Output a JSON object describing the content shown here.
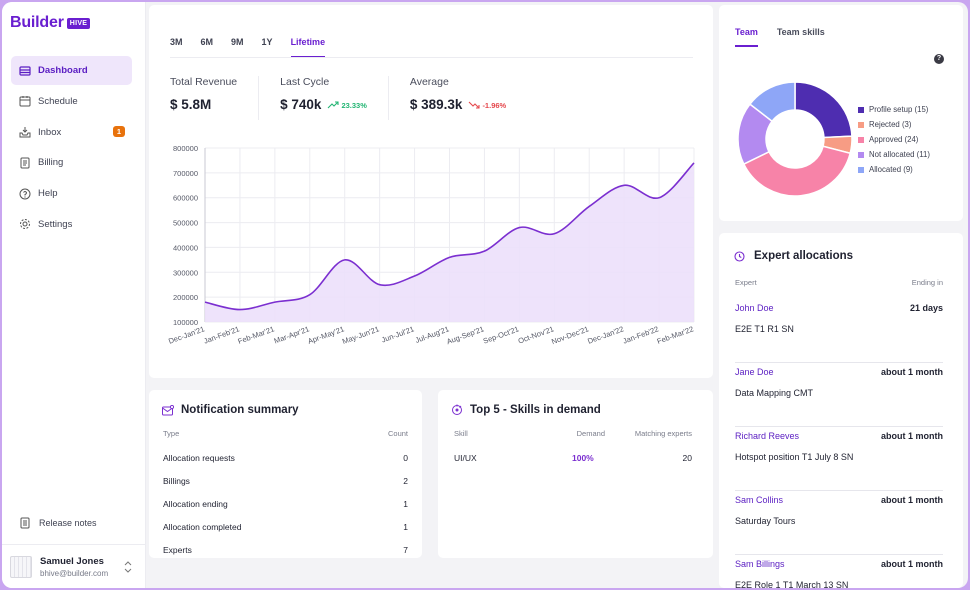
{
  "brand": {
    "word": "Builder",
    "badge": "HIVE"
  },
  "nav": [
    {
      "label": "Dashboard",
      "icon": "dashboard-icon",
      "active": true
    },
    {
      "label": "Schedule",
      "icon": "calendar-icon"
    },
    {
      "label": "Inbox",
      "icon": "inbox-icon",
      "badge": "1"
    },
    {
      "label": "Billing",
      "icon": "billing-icon"
    },
    {
      "label": "Help",
      "icon": "help-icon"
    },
    {
      "label": "Settings",
      "icon": "gear-icon"
    }
  ],
  "release_notes": "Release notes",
  "user": {
    "name": "Samuel Jones",
    "email": "bhive@builder.com"
  },
  "revenue": {
    "tabs": [
      "3M",
      "6M",
      "9M",
      "1Y",
      "Lifetime"
    ],
    "active_tab": "Lifetime",
    "stats": [
      {
        "label": "Total Revenue",
        "value": "$ 5.8M"
      },
      {
        "label": "Last Cycle",
        "value": "$ 740k",
        "trend": "23.33%",
        "direction": "up"
      },
      {
        "label": "Average",
        "value": "$ 389.3k",
        "trend": "-1.96%",
        "direction": "down"
      }
    ]
  },
  "chart_data": {
    "type": "area",
    "categories": [
      "Dec-Jan'21",
      "Jan-Feb'21",
      "Feb-Mar'21",
      "Mar-Apr'21",
      "Apr-May'21",
      "May-Jun'21",
      "Jun-Jul'21",
      "Jul-Aug'21",
      "Aug-Sep'21",
      "Sep-Oct'21",
      "Oct-Nov'21",
      "Nov-Dec'21",
      "Dec-Jan'22",
      "Jan-Feb'22",
      "Feb-Mar'22"
    ],
    "values": [
      180000,
      150000,
      180000,
      210000,
      350000,
      250000,
      285000,
      360000,
      385000,
      480000,
      455000,
      565000,
      650000,
      600000,
      740000
    ],
    "yticks": [
      100000,
      200000,
      300000,
      400000,
      500000,
      600000,
      700000,
      800000
    ],
    "ylim": [
      100000,
      800000
    ],
    "grid": true,
    "line_color": "#7b2fd0",
    "fill_color": "#ece0fb"
  },
  "notifications": {
    "title": "Notification summary",
    "columns": [
      "Type",
      "Count"
    ],
    "rows": [
      {
        "type": "Allocation requests",
        "count": "0"
      },
      {
        "type": "Billings",
        "count": "2"
      },
      {
        "type": "Allocation ending",
        "count": "1"
      },
      {
        "type": "Allocation completed",
        "count": "1"
      },
      {
        "type": "Experts",
        "count": "7"
      }
    ]
  },
  "skills": {
    "title": "Top 5 - Skills in demand",
    "columns": [
      "Skill",
      "Demand",
      "Matching experts"
    ],
    "rows": [
      {
        "skill": "UI/UX",
        "demand": "100%",
        "matching": "20"
      }
    ]
  },
  "team": {
    "tabs": [
      "Team",
      "Team skills"
    ],
    "active_tab": "Team",
    "help": "?",
    "segments": [
      {
        "label": "Profile setup (15)",
        "value": 15,
        "color": "#4e2db0"
      },
      {
        "label": "Rejected (3)",
        "value": 3,
        "color": "#f79c84"
      },
      {
        "label": "Approved (24)",
        "value": 24,
        "color": "#f783a8"
      },
      {
        "label": "Not allocated (11)",
        "value": 11,
        "color": "#b38af0"
      },
      {
        "label": "Allocated (9)",
        "value": 9,
        "color": "#8ea6f7"
      }
    ]
  },
  "experts": {
    "title": "Expert allocations",
    "columns": [
      "Expert",
      "Ending in"
    ],
    "rows": [
      {
        "name": "John Doe",
        "ending": "21 days",
        "project": "E2E T1 R1 SN"
      },
      {
        "name": "Jane Doe",
        "ending": "about 1 month",
        "project": "Data Mapping CMT"
      },
      {
        "name": "Richard Reeves",
        "ending": "about 1 month",
        "project": "Hotspot position T1 July 8 SN"
      },
      {
        "name": "Sam Collins",
        "ending": "about 1 month",
        "project": "Saturday Tours"
      },
      {
        "name": "Sam Billings",
        "ending": "about 1 month",
        "project": "E2E Role 1 T1 March 13 SN"
      }
    ]
  }
}
